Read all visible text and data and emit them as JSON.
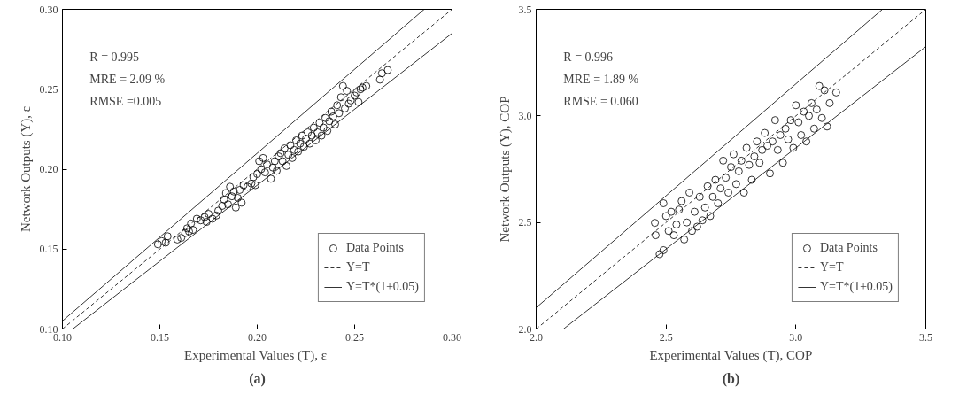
{
  "chart_data": [
    {
      "type": "scatter",
      "xlabel": "Experimental Values (T),  ε",
      "ylabel": "Network Outputs (Y), ε",
      "annotations": [
        "R = 0.995",
        "MRE = 2.09 %",
        "RMSE =0.005",
        "(a)"
      ],
      "xlim": [
        0.1,
        0.3
      ],
      "ylim": [
        0.1,
        0.3
      ],
      "xticks": [
        {
          "value": 0.1,
          "label": "0.10"
        },
        {
          "value": 0.15,
          "label": "0.15"
        },
        {
          "value": 0.2,
          "label": "0.20"
        },
        {
          "value": 0.25,
          "label": "0.25"
        },
        {
          "value": 0.3,
          "label": "0.30"
        }
      ],
      "yticks": [
        {
          "value": 0.1,
          "label": "0.10"
        },
        {
          "value": 0.15,
          "label": "0.15"
        },
        {
          "value": 0.2,
          "label": "0.20"
        },
        {
          "value": 0.25,
          "label": "0.25"
        },
        {
          "value": 0.3,
          "label": "0.30"
        }
      ],
      "legend": "bottom right",
      "grid": false,
      "series": [
        {
          "name": "Data Points",
          "marker": "circle",
          "color": "#000000",
          "x": [
            0.149,
            0.151,
            0.153,
            0.154,
            0.159,
            0.161,
            0.163,
            0.164,
            0.165,
            0.166,
            0.167,
            0.169,
            0.171,
            0.173,
            0.175,
            0.174,
            0.177,
            0.179,
            0.18,
            0.182,
            0.183,
            0.184,
            0.185,
            0.186,
            0.187,
            0.188,
            0.189,
            0.19,
            0.191,
            0.192,
            0.193,
            0.195,
            0.197,
            0.198,
            0.2,
            0.199,
            0.201,
            0.202,
            0.203,
            0.204,
            0.205,
            0.207,
            0.208,
            0.209,
            0.21,
            0.211,
            0.212,
            0.213,
            0.214,
            0.215,
            0.216,
            0.217,
            0.218,
            0.219,
            0.22,
            0.221,
            0.222,
            0.223,
            0.224,
            0.225,
            0.226,
            0.227,
            0.228,
            0.229,
            0.23,
            0.231,
            0.232,
            0.233,
            0.234,
            0.235,
            0.236,
            0.237,
            0.238,
            0.239,
            0.24,
            0.241,
            0.242,
            0.243,
            0.244,
            0.245,
            0.246,
            0.247,
            0.248,
            0.25,
            0.251,
            0.252,
            0.253,
            0.254,
            0.256,
            0.263,
            0.264,
            0.267
          ],
          "values": [
            0.153,
            0.155,
            0.154,
            0.158,
            0.156,
            0.157,
            0.16,
            0.163,
            0.161,
            0.166,
            0.162,
            0.169,
            0.168,
            0.17,
            0.172,
            0.167,
            0.169,
            0.171,
            0.174,
            0.177,
            0.181,
            0.185,
            0.178,
            0.189,
            0.183,
            0.186,
            0.176,
            0.182,
            0.187,
            0.179,
            0.19,
            0.189,
            0.191,
            0.195,
            0.197,
            0.19,
            0.205,
            0.2,
            0.207,
            0.198,
            0.203,
            0.194,
            0.201,
            0.205,
            0.199,
            0.208,
            0.21,
            0.205,
            0.213,
            0.202,
            0.209,
            0.215,
            0.207,
            0.212,
            0.218,
            0.211,
            0.216,
            0.221,
            0.214,
            0.219,
            0.223,
            0.216,
            0.221,
            0.226,
            0.218,
            0.223,
            0.229,
            0.221,
            0.226,
            0.232,
            0.224,
            0.23,
            0.236,
            0.233,
            0.228,
            0.24,
            0.235,
            0.245,
            0.252,
            0.238,
            0.249,
            0.241,
            0.243,
            0.246,
            0.248,
            0.242,
            0.25,
            0.251,
            0.252,
            0.256,
            0.26,
            0.262
          ]
        },
        {
          "name": "Y=T",
          "type": "line",
          "line_style": "dashed",
          "color": "#000000",
          "x": [
            0.1,
            0.3
          ],
          "values": [
            0.1,
            0.3
          ]
        },
        {
          "name": "Y=T*(1±0.05)",
          "type": "line",
          "line_style": "solid",
          "color": "#000000",
          "x": [
            0.1,
            0.2857
          ],
          "values": [
            0.105,
            0.3
          ]
        },
        {
          "type": "line",
          "line_style": "solid",
          "color": "#000000",
          "x": [
            0.1053,
            0.3
          ],
          "values": [
            0.1,
            0.285
          ]
        }
      ]
    },
    {
      "type": "scatter",
      "xlabel": "Experimental Values (T), COP",
      "ylabel": "Network Outputs (Y), COP",
      "annotations": [
        "R = 0.996",
        "MRE = 1.89 %",
        "RMSE = 0.060",
        "(b)"
      ],
      "xlim": [
        2.0,
        3.5
      ],
      "ylim": [
        2.0,
        3.5
      ],
      "xticks": [
        {
          "value": 2.0,
          "label": "2.0"
        },
        {
          "value": 2.5,
          "label": "2.5"
        },
        {
          "value": 3.0,
          "label": "3.0"
        },
        {
          "value": 3.5,
          "label": "3.5"
        }
      ],
      "yticks": [
        {
          "value": 2.0,
          "label": "2.0"
        },
        {
          "value": 2.5,
          "label": "2.5"
        },
        {
          "value": 3.0,
          "label": "3.0"
        },
        {
          "value": 3.5,
          "label": "3.5"
        }
      ],
      "legend": "bottom right",
      "grid": false,
      "series": [
        {
          "name": "Data Points",
          "marker": "circle",
          "color": "#000000",
          "x": [
            2.457,
            2.46,
            2.475,
            2.49,
            2.49,
            2.5,
            2.51,
            2.52,
            2.53,
            2.54,
            2.55,
            2.56,
            2.57,
            2.58,
            2.59,
            2.6,
            2.61,
            2.62,
            2.63,
            2.64,
            2.65,
            2.66,
            2.67,
            2.68,
            2.69,
            2.7,
            2.71,
            2.72,
            2.73,
            2.74,
            2.75,
            2.76,
            2.77,
            2.78,
            2.79,
            2.8,
            2.81,
            2.82,
            2.83,
            2.84,
            2.85,
            2.86,
            2.87,
            2.88,
            2.89,
            2.9,
            2.91,
            2.92,
            2.93,
            2.94,
            2.95,
            2.96,
            2.97,
            2.98,
            2.99,
            3.0,
            3.01,
            3.02,
            3.03,
            3.04,
            3.05,
            3.06,
            3.07,
            3.08,
            3.09,
            3.1,
            3.11,
            3.12,
            3.13,
            3.155
          ],
          "values": [
            2.498,
            2.44,
            2.351,
            2.37,
            2.59,
            2.53,
            2.46,
            2.55,
            2.44,
            2.49,
            2.56,
            2.6,
            2.42,
            2.5,
            2.64,
            2.46,
            2.55,
            2.48,
            2.62,
            2.51,
            2.57,
            2.67,
            2.53,
            2.62,
            2.7,
            2.59,
            2.66,
            2.79,
            2.71,
            2.64,
            2.76,
            2.82,
            2.68,
            2.74,
            2.79,
            2.64,
            2.85,
            2.77,
            2.7,
            2.81,
            2.88,
            2.78,
            2.84,
            2.92,
            2.86,
            2.73,
            2.88,
            2.98,
            2.84,
            2.91,
            2.78,
            2.94,
            2.89,
            2.98,
            2.85,
            3.05,
            2.97,
            2.91,
            3.02,
            2.88,
            3.0,
            3.06,
            2.94,
            3.03,
            3.14,
            2.99,
            3.12,
            2.95,
            3.06,
            3.11
          ]
        },
        {
          "name": "Y=T",
          "type": "line",
          "line_style": "dashed",
          "color": "#000000",
          "x": [
            2.0,
            3.5
          ],
          "values": [
            2.0,
            3.5
          ]
        },
        {
          "name": "Y=T*(1±0.05)",
          "type": "line",
          "line_style": "solid",
          "color": "#000000",
          "x": [
            2.0,
            3.333
          ],
          "values": [
            2.1,
            3.5
          ]
        },
        {
          "type": "line",
          "line_style": "solid",
          "color": "#000000",
          "x": [
            2.105,
            3.5
          ],
          "values": [
            2.0,
            3.325
          ]
        }
      ]
    }
  ]
}
